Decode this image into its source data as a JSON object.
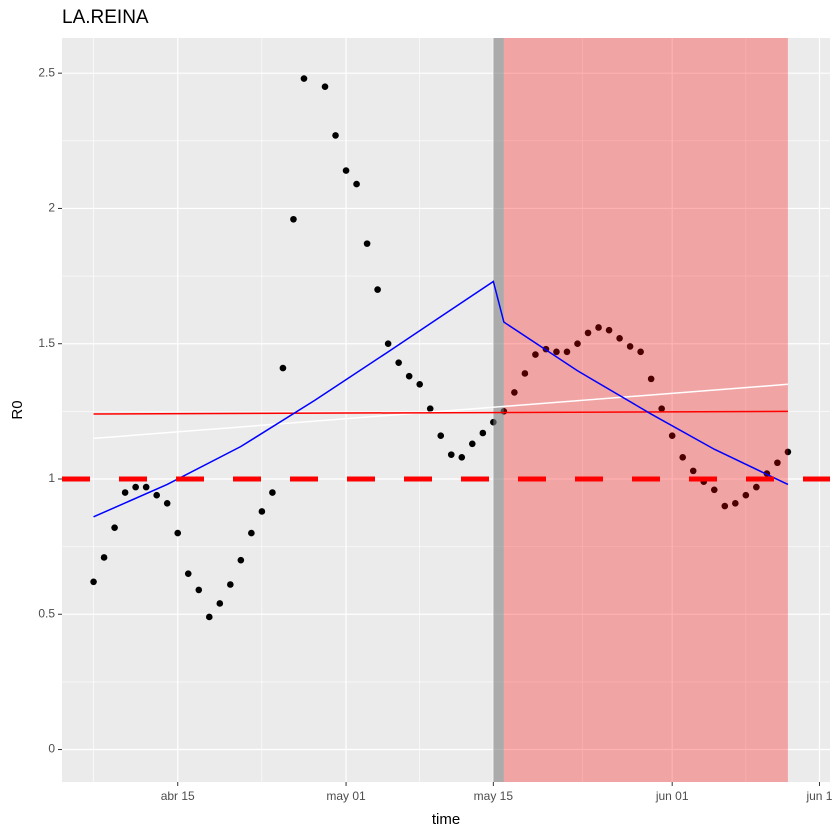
{
  "chart_data": {
    "type": "scatter",
    "title": "LA.REINA",
    "x_label": "time",
    "y_label": "R0",
    "x": [
      "04-07",
      "04-08",
      "04-09",
      "04-10",
      "04-11",
      "04-12",
      "04-13",
      "04-14",
      "04-15",
      "04-16",
      "04-17",
      "04-18",
      "04-19",
      "04-20",
      "04-21",
      "04-22",
      "04-23",
      "04-24",
      "04-25",
      "04-26",
      "04-27",
      "04-28",
      "04-29",
      "04-30",
      "05-01",
      "05-02",
      "05-03",
      "05-04",
      "05-05",
      "05-06",
      "05-07",
      "05-08",
      "05-09",
      "05-10",
      "05-11",
      "05-12",
      "05-13",
      "05-14",
      "05-15",
      "05-16",
      "05-17",
      "05-18",
      "05-19",
      "05-20",
      "05-21",
      "05-22",
      "05-23",
      "05-24",
      "05-25",
      "05-26",
      "05-27",
      "05-28",
      "05-29",
      "05-30",
      "05-31",
      "06-01",
      "06-02",
      "06-03",
      "06-04",
      "06-05",
      "06-06",
      "06-07",
      "06-08",
      "06-09",
      "06-10",
      "06-11",
      "06-12"
    ],
    "series": [
      {
        "color": "#000000",
        "values": [
          0.62,
          0.71,
          0.82,
          0.95,
          0.97,
          0.97,
          0.94,
          0.91,
          0.8,
          0.65,
          0.59,
          0.49,
          0.54,
          0.61,
          0.7,
          0.8,
          0.88,
          0.95,
          1.41,
          1.96,
          2.48,
          null,
          2.45,
          2.27,
          2.14,
          2.09,
          1.87,
          1.7,
          1.5,
          1.43,
          1.38,
          1.35,
          1.26,
          1.16,
          1.09,
          1.08,
          1.13,
          1.17,
          1.21,
          1.25,
          1.32,
          1.39,
          1.46,
          1.48,
          1.47,
          1.47,
          1.5,
          1.54,
          1.56,
          1.55,
          1.52,
          1.49,
          1.47,
          1.37,
          1.26,
          1.16,
          1.08,
          1.03,
          0.99,
          0.96,
          0.9,
          0.91,
          0.94,
          0.97,
          1.02,
          1.06,
          1.1
        ]
      }
    ],
    "lines": [
      {
        "color": "#ffffff",
        "x": [
          "04-07",
          "06-12"
        ],
        "values": [
          1.15,
          1.35
        ]
      },
      {
        "color": "#ff0000",
        "x": [
          "04-07",
          "06-12"
        ],
        "values": [
          1.24,
          1.25
        ]
      },
      {
        "color": "#0000ff",
        "x": [
          "04-07",
          "04-14",
          "04-21",
          "04-28",
          "05-05",
          "05-10",
          "05-15",
          "05-16",
          "05-23",
          "05-30",
          "06-05",
          "06-12"
        ],
        "values": [
          0.86,
          0.98,
          1.12,
          1.29,
          1.47,
          1.6,
          1.73,
          1.58,
          1.4,
          1.24,
          1.11,
          0.98
        ]
      }
    ],
    "hline": {
      "value": 1,
      "color": "#ff0000"
    },
    "shades": [
      {
        "xmin": "05-15",
        "xmax": "05-16",
        "color": "#808080",
        "alpha": 0.6
      },
      {
        "xmin": "05-16",
        "xmax": "06-12",
        "color": "#ff0000",
        "alpha": 0.3
      }
    ],
    "xlim": [
      "04-04",
      "06-16"
    ],
    "xticks": [
      {
        "value": "04-15",
        "label": "abr 15"
      },
      {
        "value": "05-01",
        "label": "may 01"
      },
      {
        "value": "05-15",
        "label": "may 15"
      },
      {
        "value": "06-01",
        "label": "jun 01"
      },
      {
        "value": "06-15",
        "label": "jun 1"
      }
    ],
    "ylim": [
      -0.12,
      2.63
    ],
    "yticks": [
      0,
      0.5,
      1,
      1.5,
      2,
      2.5
    ],
    "grid": true
  }
}
